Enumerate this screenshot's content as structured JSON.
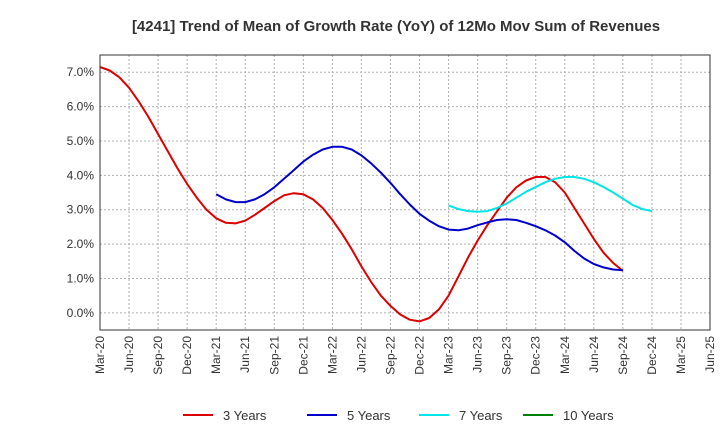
{
  "chart_data": {
    "type": "line",
    "title": "[4241]  Trend of Mean of Growth Rate (YoY) of 12Mo Mov Sum of Revenues",
    "xlabel": "",
    "ylabel": "",
    "x_ticks": [
      "Mar-20",
      "Jun-20",
      "Sep-20",
      "Dec-20",
      "Mar-21",
      "Jun-21",
      "Sep-21",
      "Dec-21",
      "Mar-22",
      "Jun-22",
      "Sep-22",
      "Dec-22",
      "Mar-23",
      "Jun-23",
      "Sep-23",
      "Dec-23",
      "Mar-24",
      "Jun-24",
      "Sep-24",
      "Dec-24",
      "Mar-25",
      "Jun-25"
    ],
    "y_ticks": [
      "0.0%",
      "1.0%",
      "2.0%",
      "3.0%",
      "4.0%",
      "5.0%",
      "6.0%",
      "7.0%"
    ],
    "y_tick_values": [
      0,
      1,
      2,
      3,
      4,
      5,
      6,
      7
    ],
    "ylim": [
      -0.5,
      7.5
    ],
    "x_index_range": [
      0,
      63
    ],
    "grid": true,
    "legend_position": "bottom",
    "series": [
      {
        "name": "3 Years",
        "color": "#dd0000",
        "start_index": 0,
        "values": [
          7.15,
          7.05,
          6.85,
          6.55,
          6.15,
          5.7,
          5.2,
          4.7,
          4.2,
          3.75,
          3.35,
          3.0,
          2.75,
          2.62,
          2.6,
          2.68,
          2.85,
          3.05,
          3.25,
          3.42,
          3.48,
          3.45,
          3.3,
          3.05,
          2.7,
          2.3,
          1.85,
          1.35,
          0.9,
          0.5,
          0.2,
          -0.05,
          -0.2,
          -0.25,
          -0.15,
          0.1,
          0.5,
          1.05,
          1.6,
          2.1,
          2.55,
          2.95,
          3.35,
          3.65,
          3.85,
          3.95,
          3.95,
          3.8,
          3.5,
          3.05,
          2.6,
          2.15,
          1.75,
          1.45,
          1.22
        ]
      },
      {
        "name": "5 Years",
        "color": "#0000cc",
        "start_index": 12,
        "values": [
          3.45,
          3.3,
          3.22,
          3.22,
          3.3,
          3.45,
          3.65,
          3.9,
          4.15,
          4.4,
          4.6,
          4.75,
          4.83,
          4.83,
          4.75,
          4.58,
          4.35,
          4.08,
          3.78,
          3.45,
          3.15,
          2.88,
          2.68,
          2.52,
          2.42,
          2.4,
          2.45,
          2.55,
          2.63,
          2.7,
          2.72,
          2.7,
          2.62,
          2.52,
          2.4,
          2.25,
          2.05,
          1.8,
          1.58,
          1.42,
          1.32,
          1.26,
          1.24
        ]
      },
      {
        "name": "7 Years",
        "color": "#00e5e5",
        "start_index": 36,
        "values": [
          3.12,
          3.02,
          2.96,
          2.94,
          2.96,
          3.05,
          3.18,
          3.35,
          3.52,
          3.66,
          3.8,
          3.9,
          3.95,
          3.95,
          3.9,
          3.8,
          3.66,
          3.5,
          3.32,
          3.14,
          3.02,
          2.96
        ]
      },
      {
        "name": "10 Years",
        "color": "#008000",
        "start_index": 0,
        "values": []
      }
    ]
  }
}
